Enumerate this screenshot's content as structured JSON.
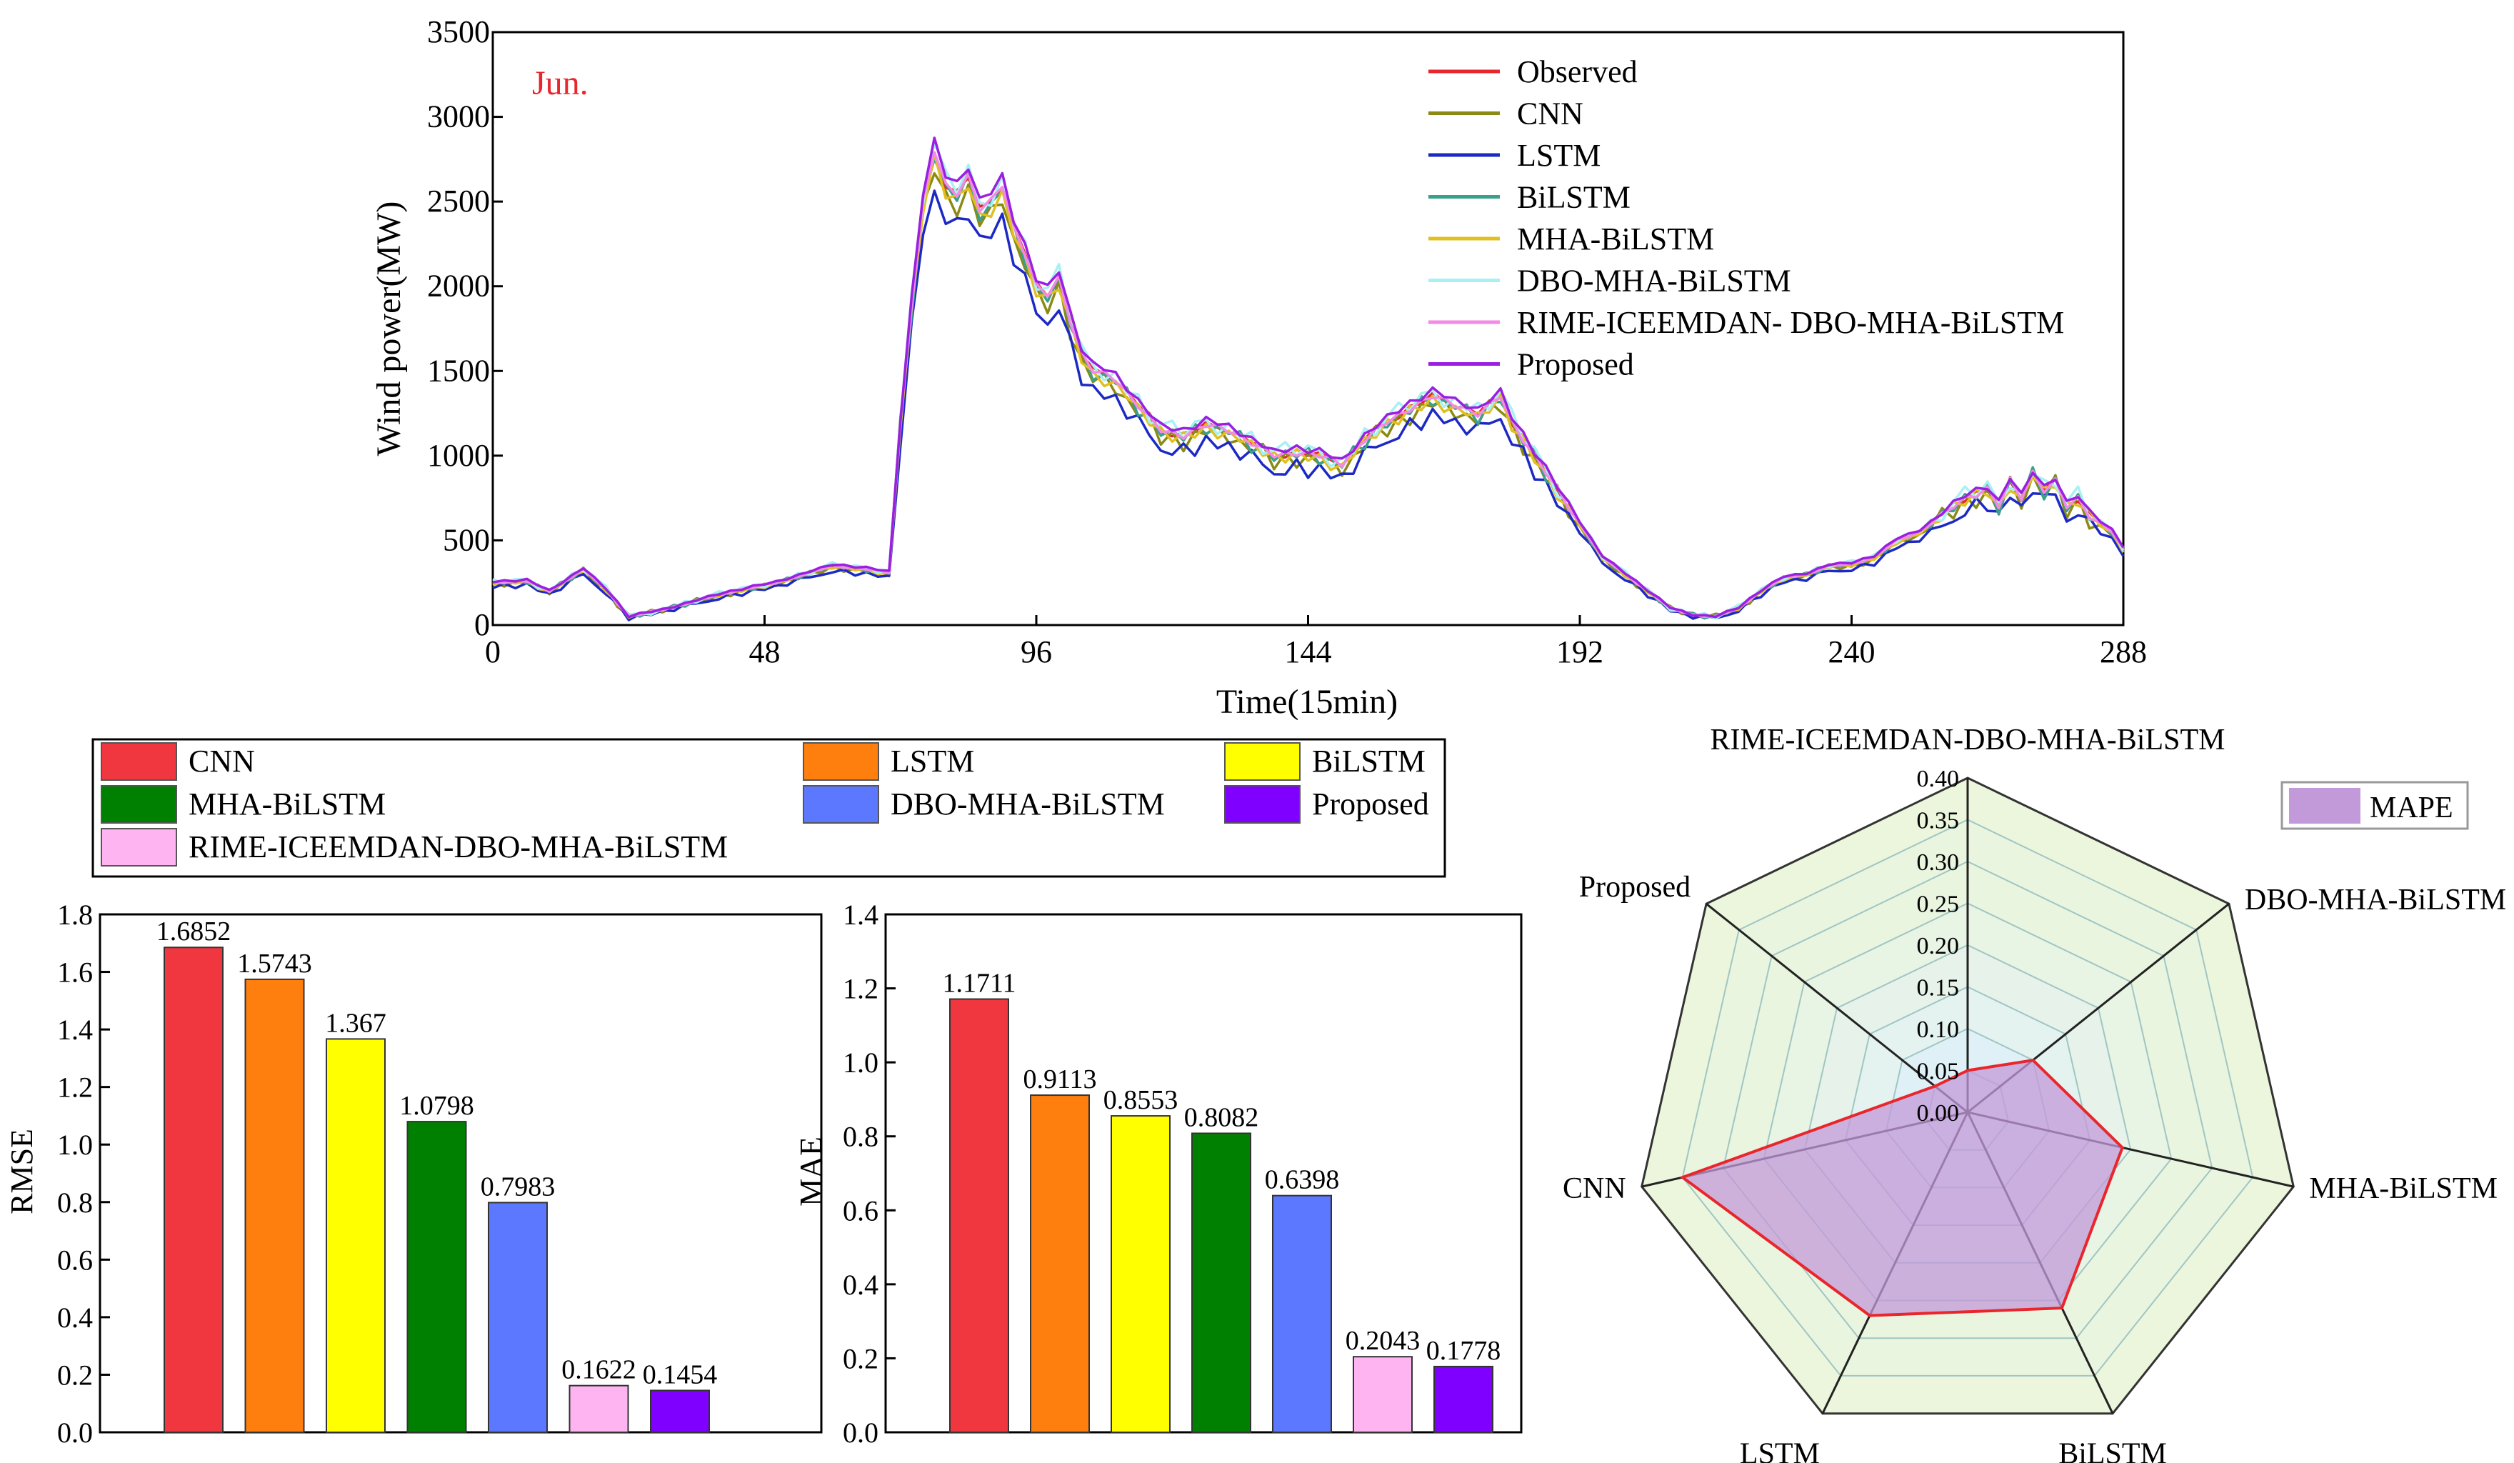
{
  "colors": {
    "observed": "#e8262c",
    "cnn": "#8a8a14",
    "lstm": "#1d29c4",
    "bilstm": "#3aa08a",
    "mha_bilstm": "#e0c020",
    "dbo_mha_bilstm": "#a8f0f4",
    "rime": "#f28ae6",
    "proposed": "#9b1fe0",
    "bar_cnn": "#f0363f",
    "bar_lstm": "#ff7f0e",
    "bar_bilstm": "#ffff00",
    "bar_mha": "#008000",
    "bar_dbo": "#5b78ff",
    "bar_rime": "#ffb4f2",
    "bar_proposed": "#8000ff",
    "title_red": "#e8262c",
    "radar_line": "#e8262c",
    "radar_fill": "#c39ad9"
  },
  "chart_data": [
    {
      "type": "line",
      "title": "Jun.",
      "xlabel": "Time(15min)",
      "ylabel": "Wind power(MW)",
      "xlim": [
        0,
        288
      ],
      "ylim": [
        0,
        3500
      ],
      "xticks": [
        0,
        48,
        96,
        144,
        192,
        240,
        288
      ],
      "yticks": [
        0,
        500,
        1000,
        1500,
        2000,
        2500,
        3000,
        3500
      ],
      "legend_position": "top-right",
      "reference": {
        "x": [
          0,
          6,
          10,
          16,
          20,
          24,
          30,
          40,
          50,
          60,
          66,
          70,
          72,
          74,
          76,
          78,
          80,
          82,
          84,
          86,
          88,
          90,
          92,
          94,
          96,
          98,
          100,
          102,
          104,
          106,
          108,
          110,
          114,
          118,
          122,
          126,
          130,
          134,
          138,
          142,
          146,
          150,
          154,
          158,
          162,
          166,
          170,
          174,
          178,
          180,
          184,
          188,
          192,
          196,
          200,
          204,
          208,
          212,
          216,
          220,
          224,
          228,
          232,
          236,
          240,
          244,
          248,
          252,
          256,
          260,
          264,
          266,
          268,
          270,
          272,
          274,
          276,
          278,
          280,
          282,
          284,
          286,
          288
        ],
        "y": [
          250,
          260,
          200,
          330,
          210,
          50,
          90,
          180,
          250,
          350,
          330,
          310,
          1200,
          1900,
          2500,
          2800,
          2600,
          2550,
          2650,
          2450,
          2500,
          2600,
          2350,
          2200,
          2000,
          1950,
          2050,
          1800,
          1600,
          1500,
          1480,
          1450,
          1300,
          1150,
          1120,
          1180,
          1150,
          1080,
          1000,
          1020,
          1000,
          950,
          1100,
          1200,
          1280,
          1350,
          1300,
          1250,
          1350,
          1200,
          1000,
          800,
          600,
          400,
          300,
          200,
          100,
          60,
          50,
          100,
          200,
          280,
          300,
          350,
          360,
          400,
          500,
          550,
          650,
          750,
          800,
          700,
          850,
          750,
          900,
          800,
          850,
          700,
          750,
          650,
          600,
          550,
          450
        ]
      },
      "series": [
        {
          "name": "Observed",
          "key": "observed",
          "noise": [
            -20,
            15,
            -10,
            20,
            0,
            -15,
            10,
            -5,
            25,
            -10
          ],
          "scale": 1.0
        },
        {
          "name": "CNN",
          "key": "cnn",
          "noise": [
            40,
            -60,
            30,
            -20,
            50,
            -40,
            10,
            -30,
            60,
            -50
          ],
          "scale": 0.97
        },
        {
          "name": "LSTM",
          "key": "lstm",
          "noise": [
            -50,
            30,
            -70,
            20,
            -40,
            10,
            -60,
            30,
            -20,
            -40
          ],
          "scale": 0.93
        },
        {
          "name": "BiLSTM",
          "key": "bilstm",
          "noise": [
            30,
            -20,
            50,
            -40,
            20,
            -10,
            40,
            -50,
            30,
            -20
          ],
          "scale": 0.99
        },
        {
          "name": "MHA-BiLSTM",
          "key": "mha_bilstm",
          "noise": [
            -30,
            40,
            -20,
            30,
            -40,
            20,
            -10,
            30,
            -20,
            40
          ],
          "scale": 0.98
        },
        {
          "name": "DBO-MHA-BiLSTM",
          "key": "dbo_mha_bilstm",
          "noise": [
            60,
            -30,
            40,
            20,
            -50,
            30,
            -20,
            50,
            -40,
            20
          ],
          "scale": 1.01
        },
        {
          "name": "RIME-ICEEMDAN- DBO-MHA-BiLSTM",
          "key": "rime",
          "noise": [
            10,
            -20,
            15,
            -10,
            20,
            -15,
            10,
            -20,
            15,
            -10
          ],
          "scale": 1.0
        },
        {
          "name": "Proposed",
          "key": "proposed",
          "noise": [
            -10,
            20,
            -15,
            25,
            -5,
            15,
            -20,
            10,
            -10,
            20
          ],
          "scale": 1.02
        }
      ]
    },
    {
      "type": "bar",
      "ylabel": "RMSE",
      "ylim": [
        0,
        1.8
      ],
      "yticks": [
        "0.0",
        "0.2",
        "0.4",
        "0.6",
        "0.8",
        "1.0",
        "1.2",
        "1.4",
        "1.6",
        "1.8"
      ],
      "categories": [
        "CNN",
        "LSTM",
        "BiLSTM",
        "MHA-BiLSTM",
        "DBO-MHA-BiLSTM",
        "RIME-ICEEMDAN-DBO-MHA-BiLSTM",
        "Proposed"
      ],
      "values": [
        1.6852,
        1.5743,
        1.367,
        1.0798,
        0.7983,
        0.1622,
        0.1454
      ],
      "labels": [
        "1.6852",
        "1.5743",
        "1.367",
        "1.0798",
        "0.7983",
        "0.1622",
        "0.1454"
      ]
    },
    {
      "type": "bar",
      "ylabel": "MAE",
      "ylim": [
        0,
        1.4
      ],
      "yticks": [
        "0.0",
        "0.2",
        "0.4",
        "0.6",
        "0.8",
        "1.0",
        "1.2",
        "1.4"
      ],
      "categories": [
        "CNN",
        "LSTM",
        "BiLSTM",
        "MHA-BiLSTM",
        "DBO-MHA-BiLSTM",
        "RIME-ICEEMDAN-DBO-MHA-BiLSTM",
        "Proposed"
      ],
      "values": [
        1.1711,
        0.9113,
        0.8553,
        0.8082,
        0.6398,
        0.2043,
        0.1778
      ],
      "labels": [
        "1.1711",
        "0.9113",
        "0.8553",
        "0.8082",
        "0.6398",
        "0.2043",
        "0.1778"
      ]
    },
    {
      "type": "radar",
      "legend": "MAPE",
      "rlim": [
        0,
        0.4
      ],
      "rticks": [
        "0.00",
        "0.05",
        "0.10",
        "0.15",
        "0.20",
        "0.25",
        "0.30",
        "0.35",
        "0.40"
      ],
      "axes": [
        "RIME-ICEEMDAN-DBO-MHA-BiLSTM",
        "DBO-MHA-BiLSTM",
        "MHA-BiLSTM",
        "BiLSTM",
        "LSTM",
        "CNN",
        "Proposed"
      ],
      "values": [
        0.05,
        0.1,
        0.19,
        0.26,
        0.27,
        0.35,
        0.05
      ]
    }
  ],
  "bar_legend": {
    "items": [
      {
        "label": "CNN",
        "key": "bar_cnn"
      },
      {
        "label": "LSTM",
        "key": "bar_lstm"
      },
      {
        "label": "BiLSTM",
        "key": "bar_bilstm"
      },
      {
        "label": "MHA-BiLSTM",
        "key": "bar_mha"
      },
      {
        "label": "DBO-MHA-BiLSTM",
        "key": "bar_dbo"
      },
      {
        "label": "Proposed",
        "key": "bar_proposed"
      },
      {
        "label": "RIME-ICEEMDAN-DBO-MHA-BiLSTM",
        "key": "bar_rime"
      }
    ]
  }
}
